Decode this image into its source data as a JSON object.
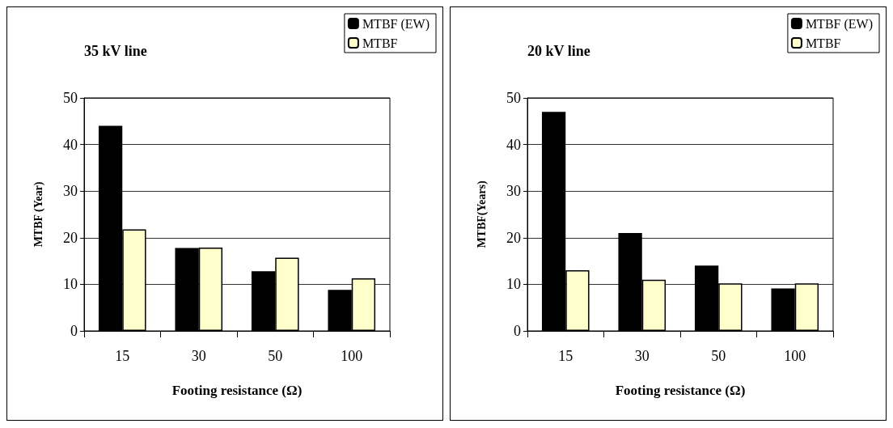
{
  "chart_data": [
    {
      "type": "bar",
      "title": "35 kV line",
      "xlabel": "Footing resistance (Ω)",
      "ylabel": "MTBF (Year)",
      "categories": [
        "15",
        "30",
        "50",
        "100"
      ],
      "series": [
        {
          "name": "MTBF (EW)",
          "color": "#000000",
          "values": [
            44,
            17.8,
            12.8,
            8.8
          ]
        },
        {
          "name": "MTBF",
          "color": "#ffffcc",
          "values": [
            21.8,
            17.9,
            15.7,
            11.3
          ]
        }
      ],
      "ylim": [
        0,
        50
      ],
      "yticks": [
        0,
        10,
        20,
        30,
        40,
        50
      ],
      "grid": "y",
      "legend": "top right"
    },
    {
      "type": "bar",
      "title": "20 kV line",
      "xlabel": "Footing resistance (Ω)",
      "ylabel": "MTBF(Years)",
      "categories": [
        "15",
        "30",
        "50",
        "100"
      ],
      "series": [
        {
          "name": "MTBF (EW)",
          "color": "#000000",
          "values": [
            47,
            21,
            14,
            9.1
          ]
        },
        {
          "name": "MTBF",
          "color": "#ffffcc",
          "values": [
            13,
            11,
            10.2,
            10.2
          ]
        }
      ],
      "ylim": [
        0,
        50
      ],
      "yticks": [
        0,
        10,
        20,
        30,
        40,
        50
      ],
      "grid": "y",
      "legend": "top right"
    }
  ]
}
